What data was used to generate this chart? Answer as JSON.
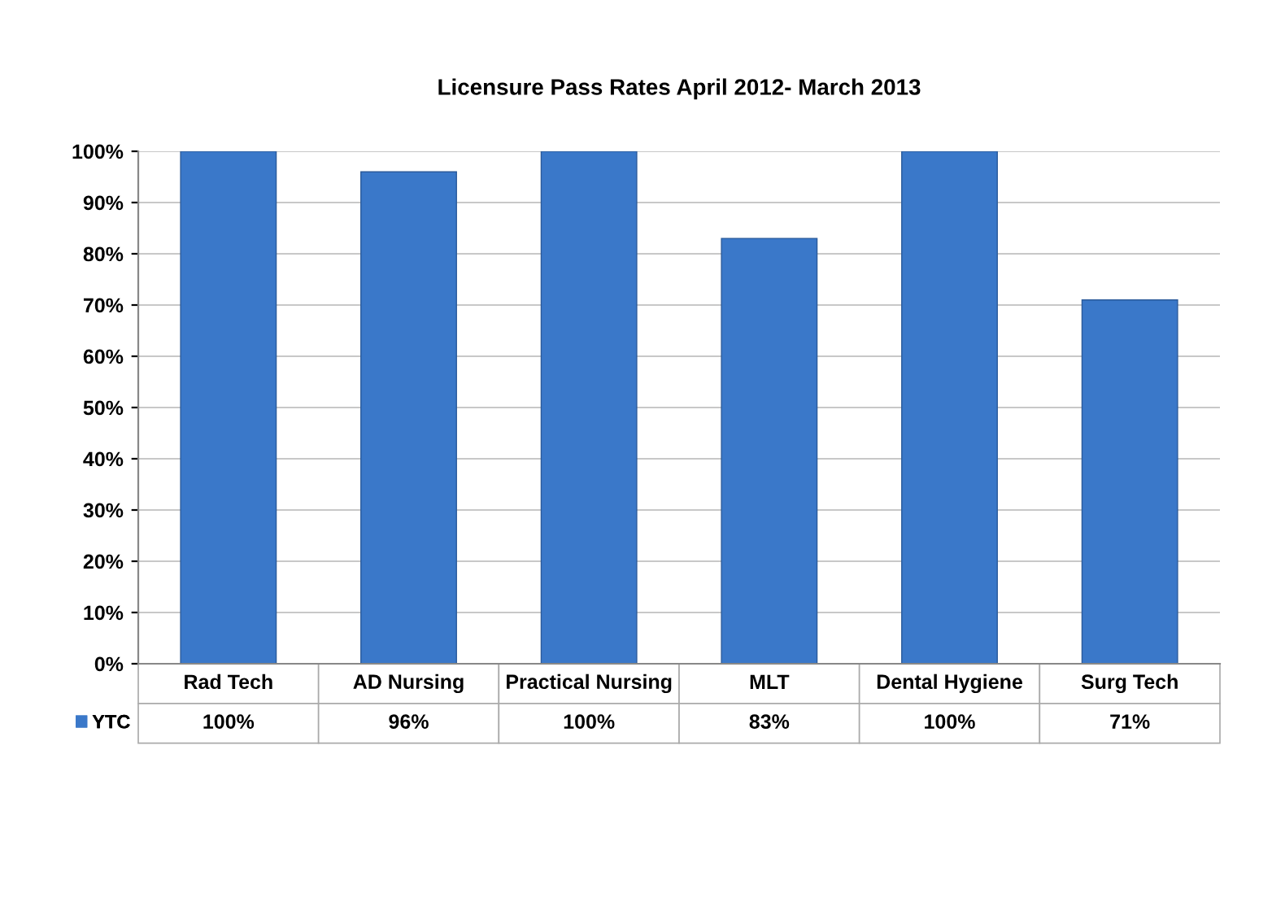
{
  "chart_data": {
    "type": "bar",
    "title": "Licensure Pass Rates April 2012- March 2013",
    "categories": [
      "Rad Tech",
      "AD Nursing",
      "Practical Nursing",
      "MLT",
      "Dental Hygiene",
      "Surg Tech"
    ],
    "series": [
      {
        "name": "YTC",
        "color": "#3a78c9",
        "values": [
          100,
          96,
          100,
          83,
          100,
          71
        ],
        "value_labels": [
          "100%",
          "96%",
          "100%",
          "83%",
          "100%",
          "71%"
        ]
      }
    ],
    "ylim": [
      0,
      100
    ],
    "yticks": [
      {
        "value": 0,
        "label": "0%"
      },
      {
        "value": 10,
        "label": "10%"
      },
      {
        "value": 20,
        "label": "20%"
      },
      {
        "value": 30,
        "label": "30%"
      },
      {
        "value": 40,
        "label": "40%"
      },
      {
        "value": 50,
        "label": "50%"
      },
      {
        "value": 60,
        "label": "60%"
      },
      {
        "value": 70,
        "label": "70%"
      },
      {
        "value": 80,
        "label": "80%"
      },
      {
        "value": 90,
        "label": "90%"
      },
      {
        "value": 100,
        "label": "100%"
      }
    ],
    "grid": "y"
  }
}
